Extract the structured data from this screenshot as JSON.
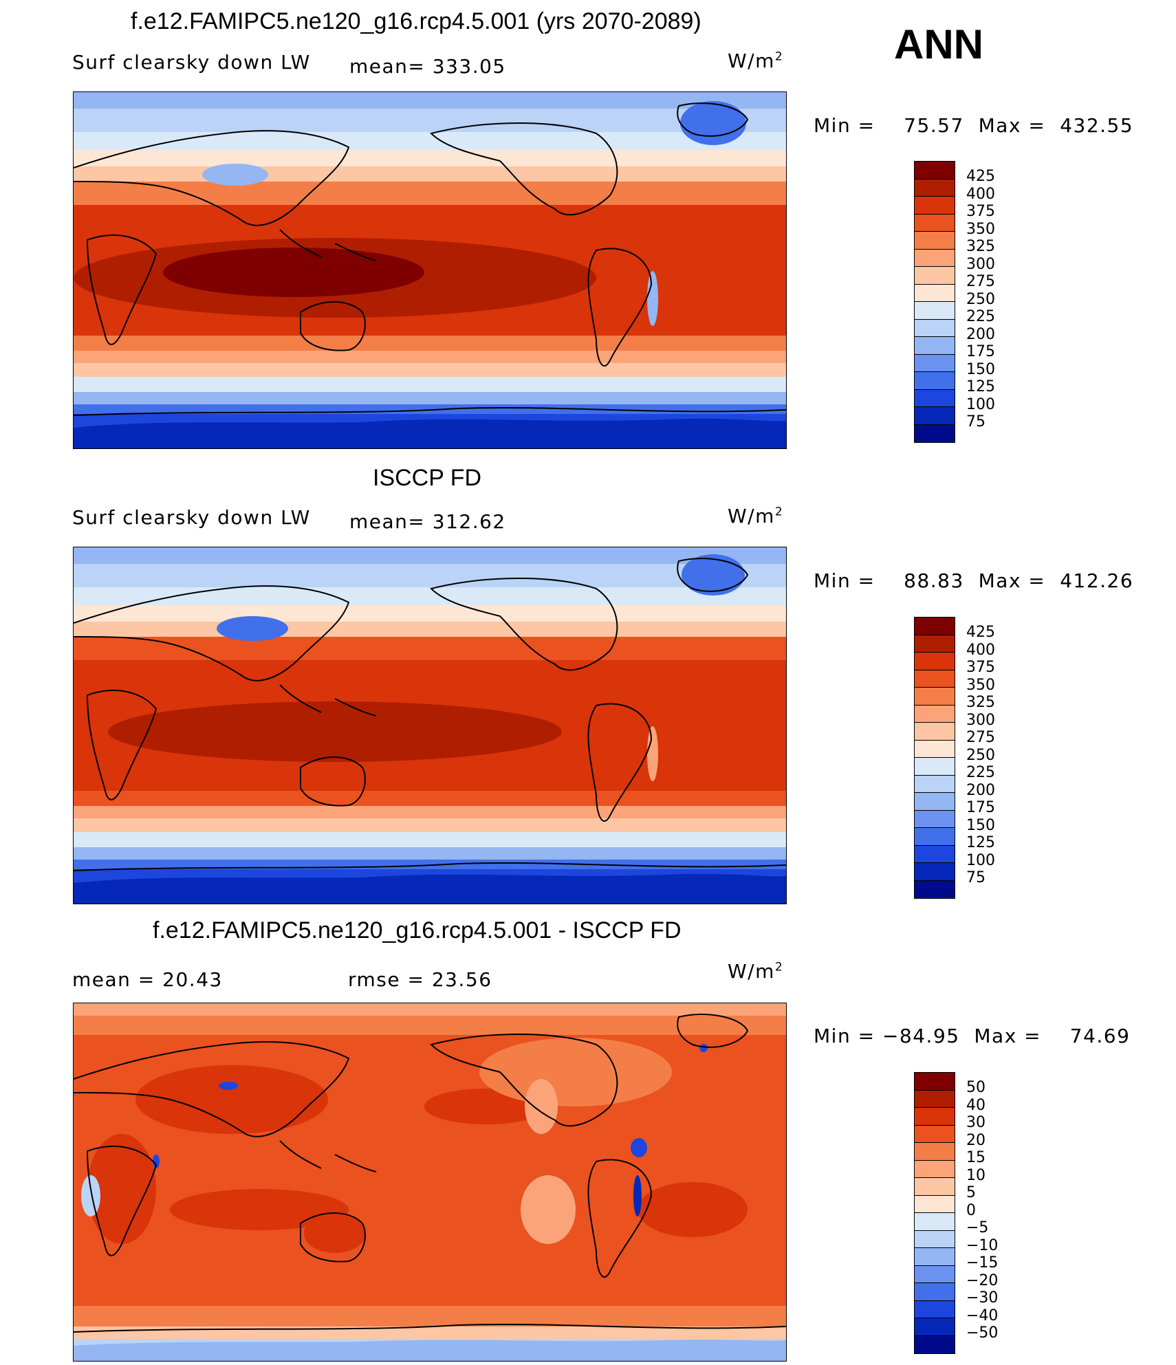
{
  "season": "ANN",
  "panels": [
    {
      "title": "f.e12.FAMIPC5.ne120_g16.rcp4.5.001 (yrs 2070-2089)",
      "left_label": "Surf clearsky down LW",
      "mid_label": "mean=  333.05",
      "units": "W/m",
      "units_sup": "2",
      "min_label": "Min  =",
      "min_value": "75.57",
      "max_label": "Max  =",
      "max_value": "432.55",
      "colorbar_ticks": [
        "425",
        "400",
        "375",
        "350",
        "325",
        "300",
        "275",
        "250",
        "225",
        "200",
        "175",
        "150",
        "125",
        "100",
        "75"
      ]
    },
    {
      "title": "ISCCP FD",
      "left_label": "Surf clearsky down LW",
      "mid_label": "mean=  312.62",
      "units": "W/m",
      "units_sup": "2",
      "min_label": "Min  =",
      "min_value": "88.83",
      "max_label": "Max  =",
      "max_value": "412.26",
      "colorbar_ticks": [
        "425",
        "400",
        "375",
        "350",
        "325",
        "300",
        "275",
        "250",
        "225",
        "200",
        "175",
        "150",
        "125",
        "100",
        "75"
      ]
    },
    {
      "title": "f.e12.FAMIPC5.ne120_g16.rcp4.5.001 - ISCCP FD",
      "left_label": "mean  =    20.43",
      "mid_label": "rmse  =    23.56",
      "units": "W/m",
      "units_sup": "2",
      "min_label": "Min  =",
      "min_value": "−84.95",
      "max_label": "Max  =",
      "max_value": "74.69",
      "colorbar_ticks": [
        "50",
        "40",
        "30",
        "20",
        "15",
        "10",
        "5",
        "0",
        "−5",
        "−10",
        "−15",
        "−20",
        "−30",
        "−40",
        "−50"
      ]
    }
  ],
  "chart_data": [
    {
      "type": "heatmap",
      "title": "f.e12.FAMIPC5.ne120_g16.rcp4.5.001 (yrs 2070-2089)",
      "variable": "Surf clearsky down LW",
      "units": "W/m2",
      "mean": 333.05,
      "min": 75.57,
      "max": 432.55,
      "colorbar_levels": [
        75,
        100,
        125,
        150,
        175,
        200,
        225,
        250,
        275,
        300,
        325,
        350,
        375,
        400,
        425
      ]
    },
    {
      "type": "heatmap",
      "title": "ISCCP FD",
      "variable": "Surf clearsky down LW",
      "units": "W/m2",
      "mean": 312.62,
      "min": 88.83,
      "max": 412.26,
      "colorbar_levels": [
        75,
        100,
        125,
        150,
        175,
        200,
        225,
        250,
        275,
        300,
        325,
        350,
        375,
        400,
        425
      ]
    },
    {
      "type": "heatmap",
      "title": "f.e12.FAMIPC5.ne120_g16.rcp4.5.001 - ISCCP FD",
      "units": "W/m2",
      "mean": 20.43,
      "rmse": 23.56,
      "min": -84.95,
      "max": 74.69,
      "colorbar_levels": [
        -50,
        -40,
        -30,
        -20,
        -15,
        -10,
        -5,
        0,
        5,
        10,
        15,
        20,
        30,
        40,
        50
      ]
    }
  ],
  "colors": {
    "abs_scale": [
      "#7f0000",
      "#b01e00",
      "#d9340a",
      "#ea5220",
      "#f47e48",
      "#fba479",
      "#fdc6a4",
      "#fde6d4",
      "#d9e9f7",
      "#bad3f7",
      "#94b6f3",
      "#6a92ee",
      "#4270ea",
      "#1d46de",
      "#0528b8",
      "#000b8c"
    ],
    "diff_scale": [
      "#7f0000",
      "#b01e00",
      "#d9340a",
      "#ea5220",
      "#f47e48",
      "#fba479",
      "#fdc6a4",
      "#fde6d4",
      "#d9e9f7",
      "#bad3f7",
      "#94b6f3",
      "#6a92ee",
      "#4270ea",
      "#1d46de",
      "#0528b8",
      "#000b8c"
    ]
  }
}
